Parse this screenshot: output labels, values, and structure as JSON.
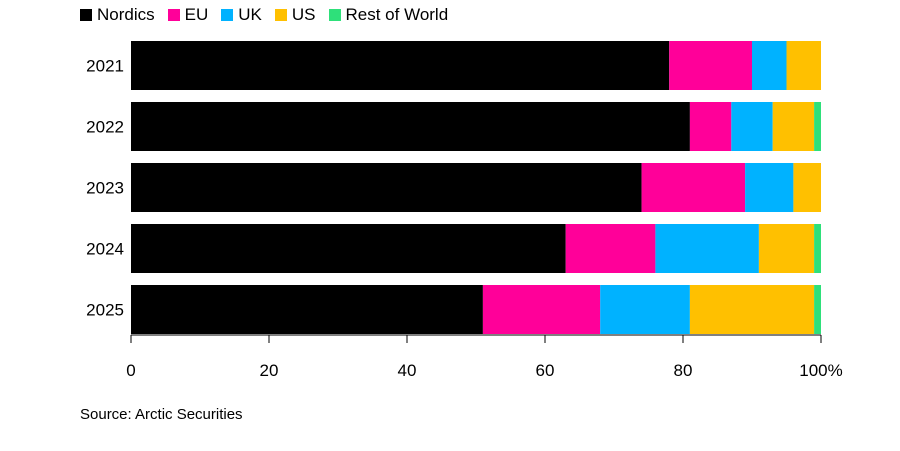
{
  "chart_data": {
    "type": "bar",
    "orientation": "horizontal",
    "stacked": true,
    "categories": [
      "2021",
      "2022",
      "2023",
      "2024",
      "2025"
    ],
    "series": [
      {
        "name": "Nordics",
        "color": "#000000",
        "values": [
          78,
          81,
          74,
          63,
          51
        ]
      },
      {
        "name": "EU",
        "color": "#ff0099",
        "values": [
          12,
          6,
          15,
          13,
          17
        ]
      },
      {
        "name": "UK",
        "color": "#00b2ff",
        "values": [
          5,
          6,
          7,
          15,
          13
        ]
      },
      {
        "name": "US",
        "color": "#ffc000",
        "values": [
          5,
          6,
          4,
          8,
          18
        ]
      },
      {
        "name": "Rest of World",
        "color": "#2ee07a",
        "values": [
          0,
          1,
          0,
          1,
          1
        ]
      }
    ],
    "xlim": [
      0,
      100
    ],
    "xticks": [
      {
        "value": 0,
        "label": "0"
      },
      {
        "value": 20,
        "label": "20"
      },
      {
        "value": 40,
        "label": "40"
      },
      {
        "value": 60,
        "label": "60"
      },
      {
        "value": 80,
        "label": "80"
      },
      {
        "value": 100,
        "label": "100%"
      }
    ],
    "legend_position": "top-left",
    "grid": false
  },
  "source": "Source: Arctic Securities"
}
